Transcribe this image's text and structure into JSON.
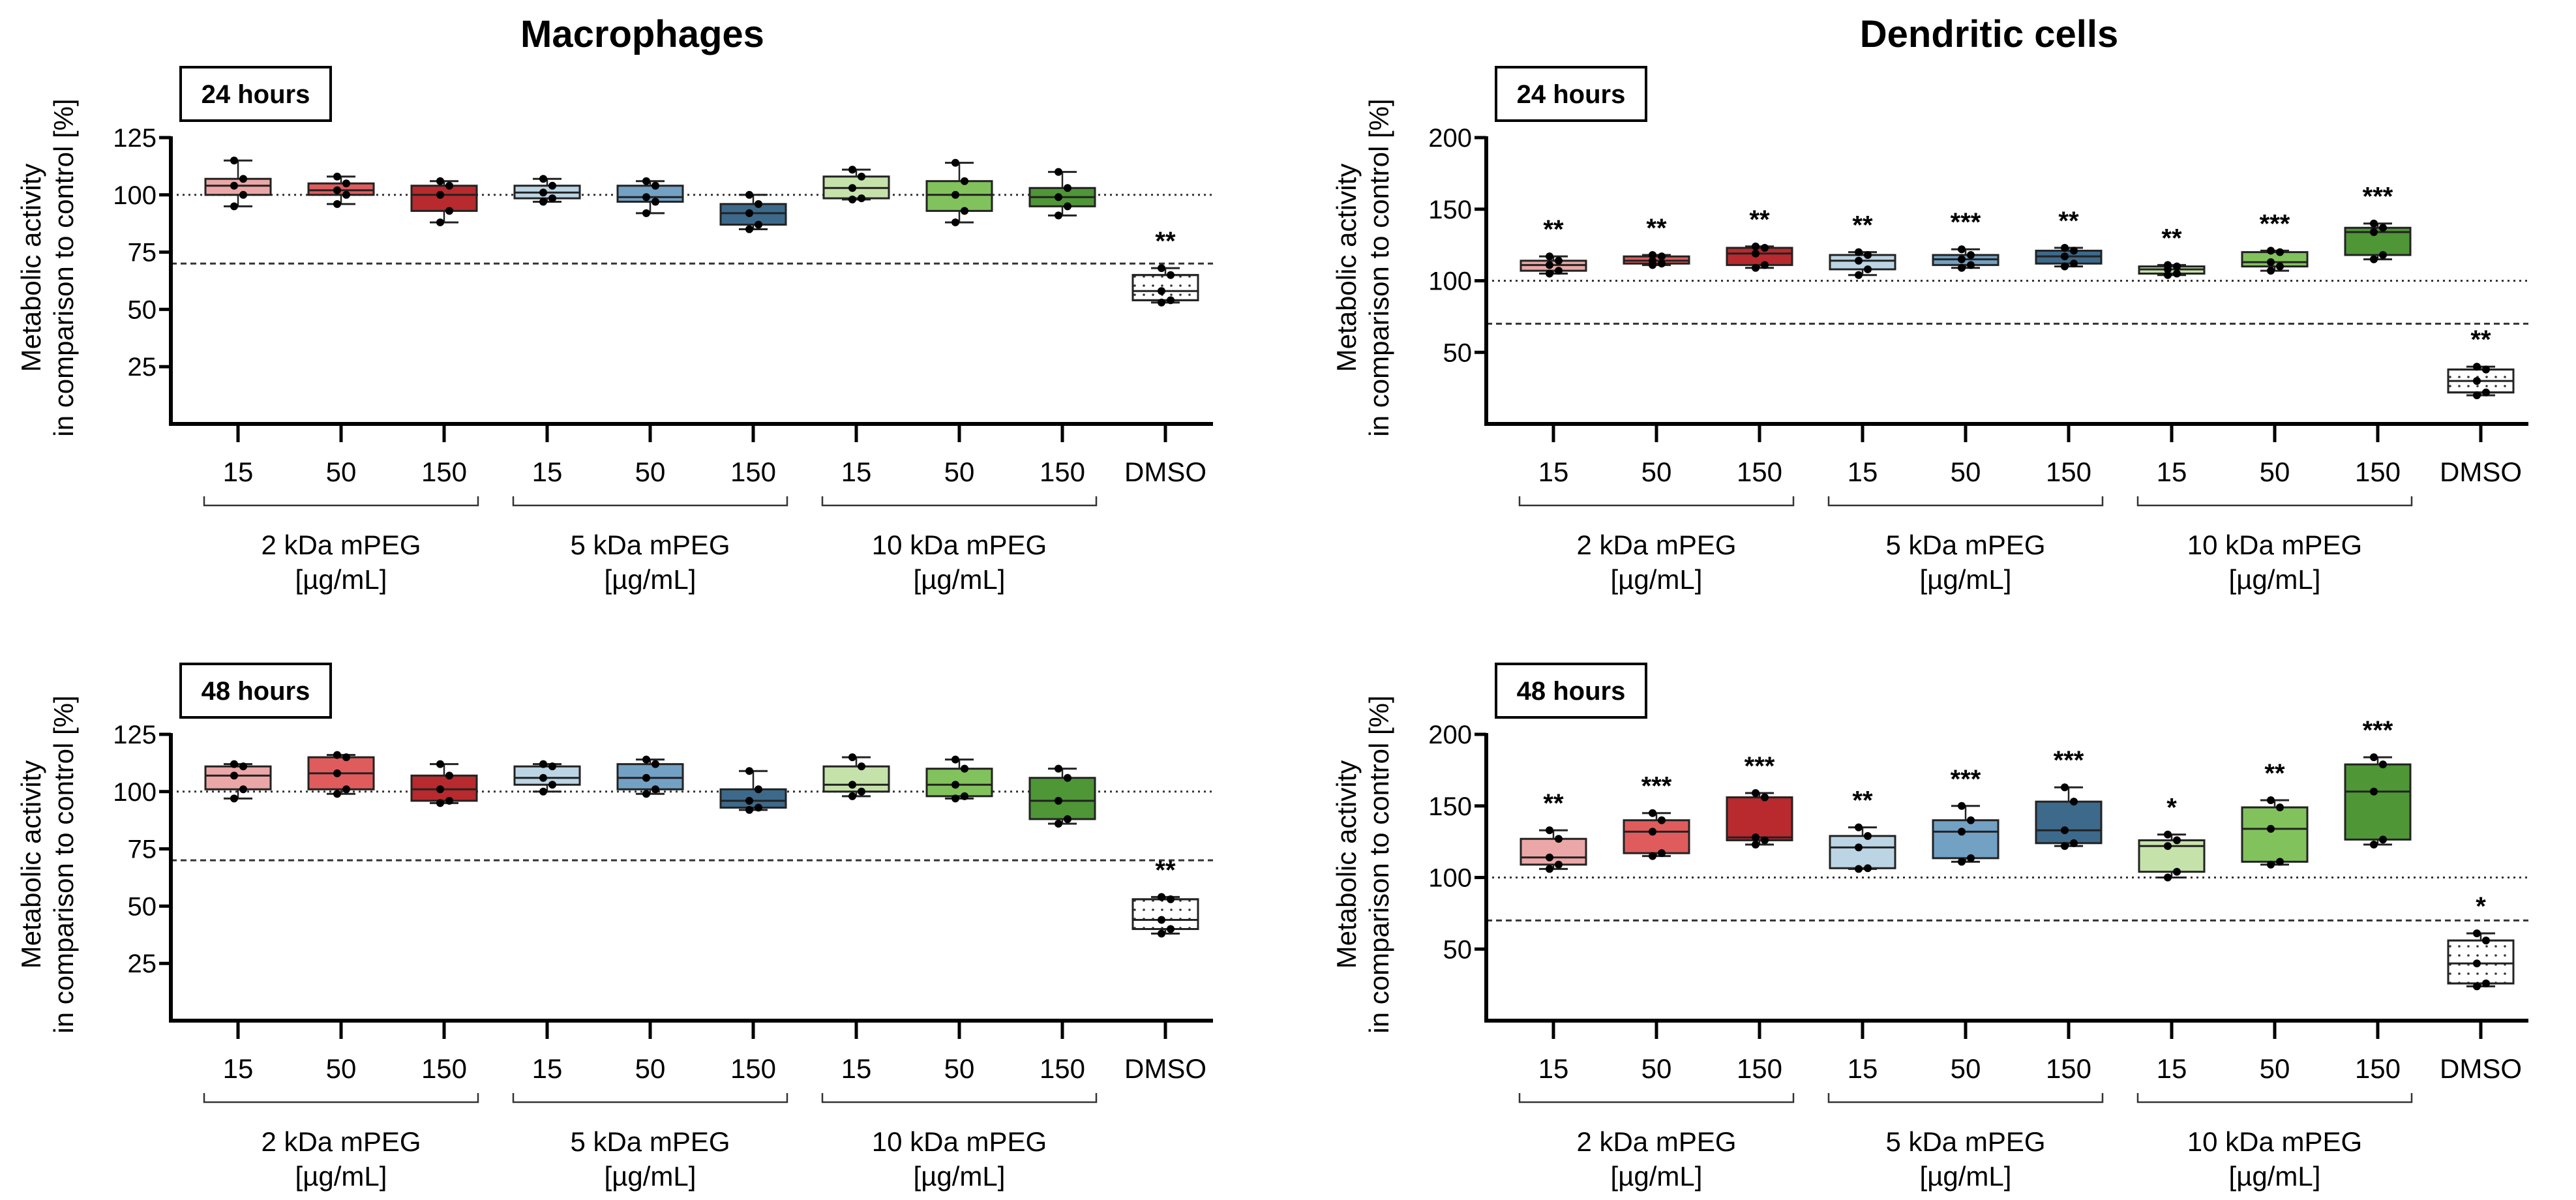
{
  "column_titles": [
    "Macrophages",
    "Dendritic cells"
  ],
  "colors": {
    "2kDa": [
      "#eba7a7",
      "#e05c5c",
      "#b82a2e"
    ],
    "5kDa": [
      "#bcd5e4",
      "#72a1c4",
      "#3d6a8b"
    ],
    "10kDa": [
      "#c6e2ab",
      "#82c25c",
      "#4e9636"
    ],
    "DMSO": "#ffffff"
  },
  "chart_data": [
    {
      "type": "box",
      "title": "Macrophages",
      "panel_label": "24 hours",
      "ylabel": [
        "Metabolic activity",
        "in comparison to control  [%]"
      ],
      "ylim": [
        0,
        125
      ],
      "yticks": [
        "25",
        "50",
        "75",
        "100",
        "125"
      ],
      "reference_lines": {
        "dotted": 100,
        "dashed": 70
      },
      "categories": [
        "15",
        "50",
        "150",
        "15",
        "50",
        "150",
        "15",
        "50",
        "150",
        "DMSO"
      ],
      "groups": [
        {
          "label": "2 kDa mPEG",
          "unit": "[µg/mL]"
        },
        {
          "label": "5 kDa mPEG",
          "unit": "[µg/mL]"
        },
        {
          "label": "10 kDa mPEG",
          "unit": "[µg/mL]"
        }
      ],
      "boxes": [
        {
          "min": 95,
          "q1": 100,
          "median": 104,
          "q3": 107,
          "max": 115,
          "sig": ""
        },
        {
          "min": 96,
          "q1": 100,
          "median": 102,
          "q3": 105,
          "max": 108,
          "sig": ""
        },
        {
          "min": 88,
          "q1": 93,
          "median": 100,
          "q3": 104,
          "max": 106,
          "sig": ""
        },
        {
          "min": 97,
          "q1": 98.5,
          "median": 101,
          "q3": 104,
          "max": 107,
          "sig": ""
        },
        {
          "min": 92,
          "q1": 97,
          "median": 99,
          "q3": 104,
          "max": 106,
          "sig": ""
        },
        {
          "min": 85,
          "q1": 87,
          "median": 92,
          "q3": 96,
          "max": 100,
          "sig": ""
        },
        {
          "min": 98,
          "q1": 98.5,
          "median": 103,
          "q3": 108,
          "max": 111,
          "sig": ""
        },
        {
          "min": 88,
          "q1": 93,
          "median": 100,
          "q3": 106,
          "max": 114,
          "sig": ""
        },
        {
          "min": 91,
          "q1": 95,
          "median": 99,
          "q3": 103,
          "max": 110,
          "sig": ""
        },
        {
          "min": 53,
          "q1": 54,
          "median": 58,
          "q3": 65,
          "max": 68,
          "sig": "**"
        }
      ]
    },
    {
      "type": "box",
      "title": "Dendritic cells",
      "panel_label": "24 hours",
      "ylabel": [
        "Metabolic activity",
        "in comparison to control  [%]"
      ],
      "ylim": [
        0,
        200
      ],
      "yticks": [
        "50",
        "100",
        "150",
        "200"
      ],
      "reference_lines": {
        "dotted": 100,
        "dashed": 70
      },
      "categories": [
        "15",
        "50",
        "150",
        "15",
        "50",
        "150",
        "15",
        "50",
        "150",
        "DMSO"
      ],
      "groups": [
        {
          "label": "2 kDa mPEG",
          "unit": "[µg/mL]"
        },
        {
          "label": "5 kDa mPEG",
          "unit": "[µg/mL]"
        },
        {
          "label": "10 kDa mPEG",
          "unit": "[µg/mL]"
        }
      ],
      "boxes": [
        {
          "min": 105,
          "q1": 107,
          "median": 111,
          "q3": 114,
          "max": 117,
          "sig": "**"
        },
        {
          "min": 111,
          "q1": 112,
          "median": 114,
          "q3": 117,
          "max": 118,
          "sig": "**"
        },
        {
          "min": 109,
          "q1": 111,
          "median": 119,
          "q3": 123,
          "max": 124,
          "sig": "**"
        },
        {
          "min": 104,
          "q1": 108,
          "median": 114,
          "q3": 118,
          "max": 120,
          "sig": "**"
        },
        {
          "min": 109,
          "q1": 111,
          "median": 115,
          "q3": 118,
          "max": 122,
          "sig": "***"
        },
        {
          "min": 110,
          "q1": 112,
          "median": 117,
          "q3": 121,
          "max": 123,
          "sig": "**"
        },
        {
          "min": 104,
          "q1": 105,
          "median": 108,
          "q3": 110,
          "max": 111,
          "sig": "**"
        },
        {
          "min": 107,
          "q1": 110,
          "median": 113,
          "q3": 120,
          "max": 121,
          "sig": "***"
        },
        {
          "min": 115,
          "q1": 118,
          "median": 134,
          "q3": 137,
          "max": 140,
          "sig": "***"
        },
        {
          "min": 20,
          "q1": 22,
          "median": 30,
          "q3": 38,
          "max": 40,
          "sig": "**"
        }
      ]
    },
    {
      "type": "box",
      "title": "",
      "panel_label": "48 hours",
      "ylabel": [
        "Metabolic activity",
        "in comparison to control  [%]"
      ],
      "ylim": [
        0,
        125
      ],
      "yticks": [
        "25",
        "50",
        "75",
        "100",
        "125"
      ],
      "reference_lines": {
        "dotted": 100,
        "dashed": 70
      },
      "categories": [
        "15",
        "50",
        "150",
        "15",
        "50",
        "150",
        "15",
        "50",
        "150",
        "DMSO"
      ],
      "groups": [
        {
          "label": "2 kDa mPEG",
          "unit": "[µg/mL]"
        },
        {
          "label": "5 kDa mPEG",
          "unit": "[µg/mL]"
        },
        {
          "label": "10 kDa mPEG",
          "unit": "[µg/mL]"
        }
      ],
      "boxes": [
        {
          "min": 97,
          "q1": 101,
          "median": 107,
          "q3": 111,
          "max": 112,
          "sig": ""
        },
        {
          "min": 99,
          "q1": 101,
          "median": 108,
          "q3": 115,
          "max": 116,
          "sig": ""
        },
        {
          "min": 95,
          "q1": 96,
          "median": 101,
          "q3": 107,
          "max": 112,
          "sig": ""
        },
        {
          "min": 100,
          "q1": 103,
          "median": 106,
          "q3": 111,
          "max": 112,
          "sig": ""
        },
        {
          "min": 99,
          "q1": 101,
          "median": 106,
          "q3": 112,
          "max": 114,
          "sig": ""
        },
        {
          "min": 92,
          "q1": 93,
          "median": 96,
          "q3": 101,
          "max": 109,
          "sig": ""
        },
        {
          "min": 98,
          "q1": 100,
          "median": 103,
          "q3": 111,
          "max": 115,
          "sig": ""
        },
        {
          "min": 97,
          "q1": 98,
          "median": 103,
          "q3": 110,
          "max": 114,
          "sig": ""
        },
        {
          "min": 86,
          "q1": 88,
          "median": 96,
          "q3": 106,
          "max": 110,
          "sig": ""
        },
        {
          "min": 38,
          "q1": 40,
          "median": 44,
          "q3": 53,
          "max": 54,
          "sig": "**"
        }
      ]
    },
    {
      "type": "box",
      "title": "",
      "panel_label": "48 hours",
      "ylabel": [
        "Metabolic activity",
        "in comparison to control  [%]"
      ],
      "ylim": [
        0,
        200
      ],
      "yticks": [
        "50",
        "100",
        "150",
        "200"
      ],
      "reference_lines": {
        "dotted": 100,
        "dashed": 70
      },
      "categories": [
        "15",
        "50",
        "150",
        "15",
        "50",
        "150",
        "15",
        "50",
        "150",
        "DMSO"
      ],
      "groups": [
        {
          "label": "2 kDa mPEG",
          "unit": "[µg/mL]"
        },
        {
          "label": "5 kDa mPEG",
          "unit": "[µg/mL]"
        },
        {
          "label": "10 kDa mPEG",
          "unit": "[µg/mL]"
        }
      ],
      "boxes": [
        {
          "min": 106,
          "q1": 109,
          "median": 114,
          "q3": 127,
          "max": 133,
          "sig": "**"
        },
        {
          "min": 115,
          "q1": 117,
          "median": 132,
          "q3": 140,
          "max": 145,
          "sig": "***"
        },
        {
          "min": 123,
          "q1": 126,
          "median": 128,
          "q3": 156,
          "max": 159,
          "sig": "***"
        },
        {
          "min": 106,
          "q1": 106.5,
          "median": 121,
          "q3": 129,
          "max": 135,
          "sig": "**"
        },
        {
          "min": 111,
          "q1": 113.5,
          "median": 132,
          "q3": 140,
          "max": 150,
          "sig": "***"
        },
        {
          "min": 122,
          "q1": 124,
          "median": 133,
          "q3": 153,
          "max": 163,
          "sig": "***"
        },
        {
          "min": 100,
          "q1": 104,
          "median": 122,
          "q3": 126,
          "max": 130,
          "sig": "*"
        },
        {
          "min": 109,
          "q1": 111,
          "median": 134,
          "q3": 149,
          "max": 154,
          "sig": "**"
        },
        {
          "min": 123,
          "q1": 126.5,
          "median": 160,
          "q3": 179,
          "max": 184,
          "sig": "***"
        },
        {
          "min": 24,
          "q1": 26,
          "median": 40,
          "q3": 56,
          "max": 61,
          "sig": "*"
        }
      ]
    }
  ]
}
